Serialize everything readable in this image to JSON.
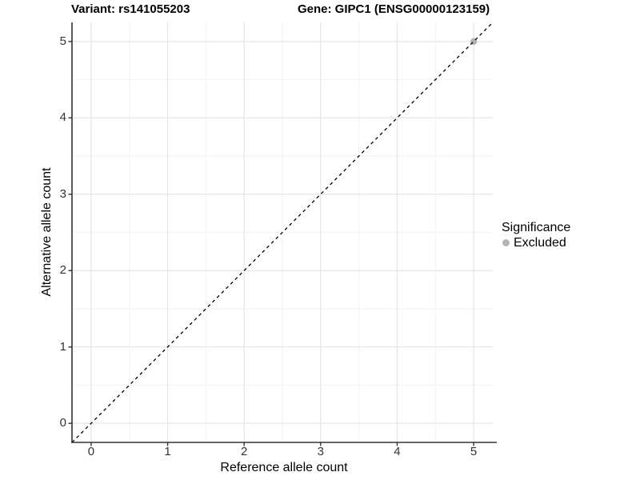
{
  "chart_data": {
    "type": "scatter",
    "title_left": "Variant: rs141055203",
    "title_right": "Gene: GIPC1 (ENSG00000123159)",
    "axis": {
      "x": {
        "label": "Reference allele count",
        "ticks": [
          0,
          1,
          2,
          3,
          4,
          5
        ],
        "minor_ticks": [
          0.5,
          1.5,
          2.5,
          3.5,
          4.5
        ],
        "range": [
          -0.25,
          5.25
        ]
      },
      "y": {
        "label": "Alternative allele count",
        "ticks": [
          0,
          1,
          2,
          3,
          4,
          5
        ],
        "minor_ticks": [
          0.5,
          1.5,
          2.5,
          3.5,
          4.5
        ],
        "range": [
          -0.25,
          5.25
        ]
      }
    },
    "grid": {
      "major": true,
      "minor": true
    },
    "reference_line": {
      "type": "identity",
      "slope": 1,
      "intercept": 0,
      "style": "dashed",
      "color": "#000000"
    },
    "points": [
      {
        "x": 5,
        "y": 5,
        "significance": "Excluded"
      }
    ],
    "legend": {
      "title": "Significance",
      "position": "right",
      "items": [
        {
          "label": "Excluded",
          "color": "#b4b4b4"
        }
      ]
    },
    "colors": {
      "grid_major": "#e5e5e5",
      "grid_minor": "#f2f2f2",
      "axis": "#333333",
      "tick_text": "#333333",
      "point": "#b4b4b4"
    }
  }
}
